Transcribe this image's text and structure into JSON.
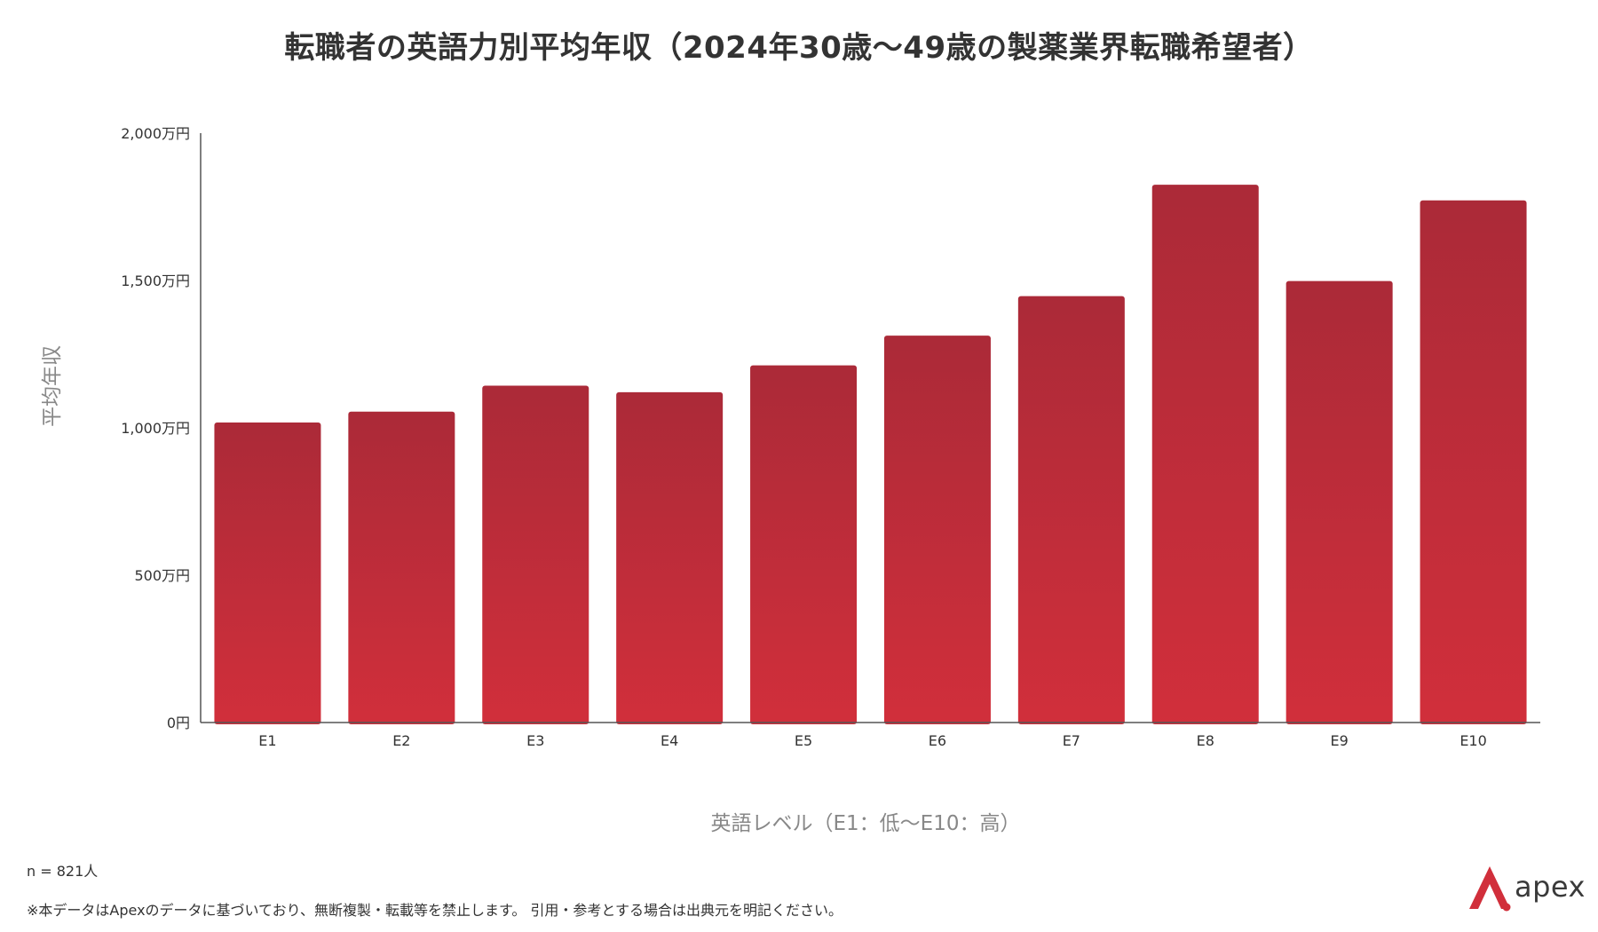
{
  "chart_data": {
    "type": "bar",
    "title": "転職者の英語力別平均年収（2024年30歳〜49歳の製薬業界転職希望者）",
    "xlabel": "英語レベル（E1：低〜E10：高）",
    "ylabel": "平均年収",
    "categories": [
      "E1",
      "E2",
      "E3",
      "E4",
      "E5",
      "E6",
      "E7",
      "E8",
      "E9",
      "E10"
    ],
    "values": [
      1018,
      1055,
      1143,
      1121,
      1212,
      1313,
      1447,
      1825,
      1498,
      1772
    ],
    "unit": "万円",
    "ylim": [
      0,
      2000
    ],
    "yticks": [
      0,
      500,
      1000,
      1500,
      2000
    ],
    "ytick_labels": [
      "0円",
      "500万円",
      "1,000万円",
      "1,500万円",
      "2,000万円"
    ],
    "grid": false,
    "legend": "none",
    "colors": {
      "bar_top": "#AB2A38",
      "bar_bottom": "#D12F3B",
      "axis": "#555555"
    }
  },
  "footer": {
    "sample_size": "n = 821人",
    "disclaimer": "※本データはApexのデータに基づいており、無断複製・転載等を禁止します。 引用・参考とする場合は出典元を明記ください。"
  },
  "brand": {
    "name": "apex",
    "accent": "#D12F3B",
    "icon": "apex-logo-icon"
  }
}
